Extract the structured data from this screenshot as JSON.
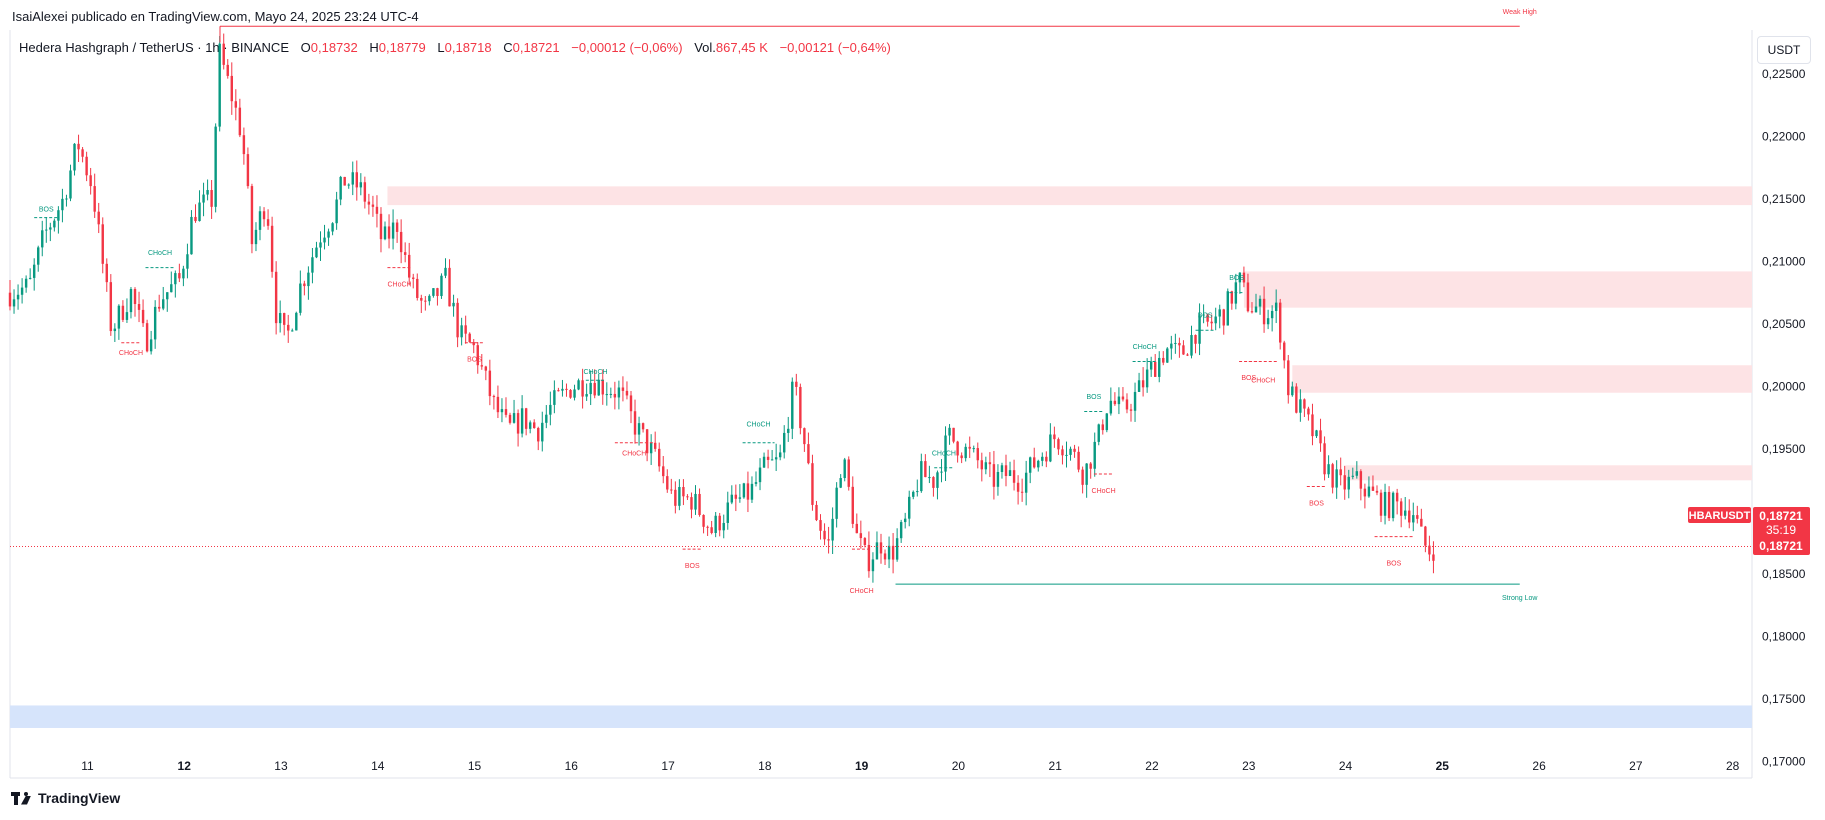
{
  "header": {
    "publisher_line": "IsaiAlexei publicado en TradingView.com, Mayo 24, 2025 23:24 UTC-4"
  },
  "symbol_bar": {
    "symbol": "Hedera Hashgraph / TetherUS · 1h · BINANCE",
    "o_label": "O",
    "o_value": "0,18732",
    "h_label": "H",
    "h_value": "0,18779",
    "l_label": "L",
    "l_value": "0,18718",
    "c_label": "C",
    "c_value": "0,18721",
    "change": "−0,00012 (−0,06%)",
    "vol_label": "Vol.",
    "vol_value": "867,45 K",
    "vol_change": "−0,00121 (−0,64%)"
  },
  "unit_button": "USDT",
  "price_tag": {
    "ticker": "HBARUSDT",
    "price": "0,18721",
    "countdown": "35:19",
    "price_line": "0,18721"
  },
  "branding": "TradingView",
  "colors": {
    "up": "#089981",
    "down": "#f23645",
    "supply_zone": "#fde3e5",
    "demand_zone": "#d6e4fb",
    "axis_text": "#131722"
  },
  "chart_data": {
    "type": "candlestick",
    "ylim": [
      0.1695,
      0.2285
    ],
    "y_ticks": [
      "0,22500",
      "0,22000",
      "0,21500",
      "0,21000",
      "0,20500",
      "0,20000",
      "0,19500",
      "0,19000",
      "0,18500",
      "0,18000",
      "0,17500",
      "0,17000"
    ],
    "y_tick_values": [
      0.225,
      0.22,
      0.215,
      0.21,
      0.205,
      0.2,
      0.195,
      0.19,
      0.185,
      0.18,
      0.175,
      0.17
    ],
    "x_range_days": [
      10.2,
      28.2
    ],
    "x_ticks": [
      "11",
      "12",
      "13",
      "14",
      "15",
      "16",
      "17",
      "18",
      "19",
      "20",
      "21",
      "22",
      "23",
      "24",
      "25",
      "26",
      "27",
      "28"
    ],
    "x_tick_days": [
      11,
      12,
      13,
      14,
      15,
      16,
      17,
      18,
      19,
      20,
      21,
      22,
      23,
      24,
      25,
      26,
      27,
      28
    ],
    "x_tick_bold": [
      "12",
      "19",
      "25"
    ],
    "anchors": [
      [
        10.2,
        0.2075
      ],
      [
        10.4,
        0.208
      ],
      [
        10.55,
        0.212
      ],
      [
        10.75,
        0.215
      ],
      [
        10.9,
        0.2195
      ],
      [
        11.05,
        0.216
      ],
      [
        11.25,
        0.2045
      ],
      [
        11.45,
        0.2075
      ],
      [
        11.6,
        0.2035
      ],
      [
        11.75,
        0.207
      ],
      [
        11.95,
        0.2085
      ],
      [
        12.1,
        0.214
      ],
      [
        12.3,
        0.215
      ],
      [
        12.35,
        0.227
      ],
      [
        12.5,
        0.223
      ],
      [
        12.6,
        0.22
      ],
      [
        12.7,
        0.2115
      ],
      [
        12.85,
        0.215
      ],
      [
        12.95,
        0.206
      ],
      [
        13.05,
        0.2035
      ],
      [
        13.2,
        0.208
      ],
      [
        13.4,
        0.212
      ],
      [
        13.55,
        0.214
      ],
      [
        13.65,
        0.2165
      ],
      [
        13.8,
        0.216
      ],
      [
        13.95,
        0.214
      ],
      [
        14.05,
        0.2115
      ],
      [
        14.2,
        0.213
      ],
      [
        14.35,
        0.208
      ],
      [
        14.5,
        0.206
      ],
      [
        14.7,
        0.2085
      ],
      [
        14.85,
        0.204
      ],
      [
        15.0,
        0.203
      ],
      [
        15.2,
        0.1985
      ],
      [
        15.35,
        0.1965
      ],
      [
        15.5,
        0.1975
      ],
      [
        15.65,
        0.1965
      ],
      [
        15.8,
        0.1985
      ],
      [
        16.0,
        0.2
      ],
      [
        16.2,
        0.2005
      ],
      [
        16.35,
        0.2
      ],
      [
        16.5,
        0.1995
      ],
      [
        16.65,
        0.197
      ],
      [
        16.85,
        0.1945
      ],
      [
        17.05,
        0.191
      ],
      [
        17.25,
        0.191
      ],
      [
        17.45,
        0.1885
      ],
      [
        17.65,
        0.1905
      ],
      [
        17.85,
        0.1915
      ],
      [
        18.0,
        0.1935
      ],
      [
        18.15,
        0.194
      ],
      [
        18.3,
        0.2
      ],
      [
        18.4,
        0.196
      ],
      [
        18.5,
        0.1905
      ],
      [
        18.65,
        0.187
      ],
      [
        18.8,
        0.1945
      ],
      [
        18.95,
        0.188
      ],
      [
        19.05,
        0.186
      ],
      [
        19.2,
        0.1875
      ],
      [
        19.3,
        0.1865
      ],
      [
        19.45,
        0.189
      ],
      [
        19.6,
        0.193
      ],
      [
        19.75,
        0.1925
      ],
      [
        19.9,
        0.196
      ],
      [
        20.05,
        0.195
      ],
      [
        20.2,
        0.194
      ],
      [
        20.35,
        0.1925
      ],
      [
        20.5,
        0.193
      ],
      [
        20.65,
        0.1925
      ],
      [
        20.85,
        0.1945
      ],
      [
        21.0,
        0.196
      ],
      [
        21.15,
        0.195
      ],
      [
        21.3,
        0.193
      ],
      [
        21.45,
        0.196
      ],
      [
        21.55,
        0.199
      ],
      [
        21.7,
        0.198
      ],
      [
        21.85,
        0.1995
      ],
      [
        22.0,
        0.2015
      ],
      [
        22.15,
        0.203
      ],
      [
        22.3,
        0.2025
      ],
      [
        22.45,
        0.2045
      ],
      [
        22.6,
        0.205
      ],
      [
        22.75,
        0.206
      ],
      [
        22.9,
        0.2085
      ],
      [
        23.0,
        0.2065
      ],
      [
        23.15,
        0.206
      ],
      [
        23.3,
        0.206
      ],
      [
        23.4,
        0.2
      ],
      [
        23.5,
        0.1985
      ],
      [
        23.65,
        0.1965
      ],
      [
        23.8,
        0.1935
      ],
      [
        23.95,
        0.192
      ],
      [
        24.1,
        0.1925
      ],
      [
        24.25,
        0.1915
      ],
      [
        24.4,
        0.1905
      ],
      [
        24.55,
        0.1905
      ],
      [
        24.7,
        0.19
      ],
      [
        24.78,
        0.188
      ],
      [
        24.85,
        0.1868
      ],
      [
        24.92,
        0.1872
      ]
    ],
    "zones": [
      {
        "type": "supply",
        "x0": 14.1,
        "x1": 28.2,
        "y0": 0.2145,
        "y1": 0.216
      },
      {
        "type": "supply",
        "x0": 22.95,
        "x1": 28.2,
        "y0": 0.2063,
        "y1": 0.2092
      },
      {
        "type": "supply",
        "x0": 23.45,
        "x1": 28.2,
        "y0": 0.1995,
        "y1": 0.2017
      },
      {
        "type": "supply",
        "x0": 24.0,
        "x1": 28.2,
        "y0": 0.1925,
        "y1": 0.1937
      },
      {
        "type": "demand",
        "x0": 10.2,
        "x1": 28.2,
        "y0": 0.1727,
        "y1": 0.1745
      }
    ],
    "levels": [
      {
        "label": "Weak High",
        "x0": 12.37,
        "x1": 25.8,
        "y": 0.2288,
        "color": "down"
      },
      {
        "label": "Strong Low",
        "x0": 19.35,
        "x1": 25.8,
        "y": 0.1842,
        "color": "up"
      }
    ],
    "structure_labels": [
      {
        "text": "BOS",
        "x": 10.45,
        "y": 0.214,
        "y_end": 0.2135,
        "x_end": 10.7,
        "color": "up"
      },
      {
        "text": "CHoCH",
        "x": 11.6,
        "y": 0.2105,
        "y_end": 0.2095,
        "x_end": 11.9,
        "color": "up"
      },
      {
        "text": "CHoCH",
        "x": 11.35,
        "y": 0.2025,
        "y_end": 0.2035,
        "x_end": 11.55,
        "color": "down"
      },
      {
        "text": "CHoCH",
        "x": 14.1,
        "y": 0.208,
        "y_end": 0.2095,
        "x_end": 14.35,
        "color": "down"
      },
      {
        "text": "BOS",
        "x": 14.9,
        "y": 0.202,
        "y_end": 0.2035,
        "x_end": 15.1,
        "color": "down"
      },
      {
        "text": "CHoCH",
        "x": 16.15,
        "y": 0.201,
        "y_end": 0.2005,
        "x_end": 16.35,
        "color": "up"
      },
      {
        "text": "CHoCH",
        "x": 16.45,
        "y": 0.1945,
        "y_end": 0.1955,
        "x_end": 16.85,
        "color": "down"
      },
      {
        "text": "CHoCH",
        "x": 17.77,
        "y": 0.1968,
        "y_end": 0.1955,
        "x_end": 18.1,
        "color": "up"
      },
      {
        "text": "BOS",
        "x": 17.15,
        "y": 0.1855,
        "y_end": 0.187,
        "x_end": 17.35,
        "color": "down"
      },
      {
        "text": "CHoCH",
        "x": 18.9,
        "y": 0.1835,
        "y_end": 0.187,
        "x_end": 19.1,
        "color": "down"
      },
      {
        "text": "CHoCH",
        "x": 19.75,
        "y": 0.1945,
        "y_end": 0.1935,
        "x_end": 19.95,
        "color": "up"
      },
      {
        "text": "BOS",
        "x": 21.3,
        "y": 0.199,
        "y_end": 0.198,
        "x_end": 21.5,
        "color": "up"
      },
      {
        "text": "CHoCH",
        "x": 21.4,
        "y": 0.1915,
        "y_end": 0.193,
        "x_end": 21.6,
        "color": "down"
      },
      {
        "text": "CHoCH",
        "x": 21.8,
        "y": 0.203,
        "y_end": 0.202,
        "x_end": 22.05,
        "color": "up"
      },
      {
        "text": "BOS",
        "x": 22.45,
        "y": 0.2055,
        "y_end": 0.2045,
        "x_end": 22.65,
        "color": "up"
      },
      {
        "text": "BOS",
        "x": 22.8,
        "y": 0.2085,
        "y_end": 0.2075,
        "x_end": 22.95,
        "color": "up"
      },
      {
        "text": "BOS",
        "x": 22.9,
        "y": 0.2005,
        "y_end": 0.202,
        "x_end": 23.1,
        "color": "down"
      },
      {
        "text": "CHoCH",
        "x": 23.0,
        "y": 0.2003,
        "y_end": 0.202,
        "x_end": 23.3,
        "color": "down"
      },
      {
        "text": "BOS",
        "x": 23.6,
        "y": 0.1905,
        "y_end": 0.192,
        "x_end": 23.8,
        "color": "down"
      },
      {
        "text": "BOS",
        "x": 24.3,
        "y": 0.1857,
        "y_end": 0.188,
        "x_end": 24.7,
        "color": "down"
      }
    ],
    "last_price": 0.18721
  }
}
